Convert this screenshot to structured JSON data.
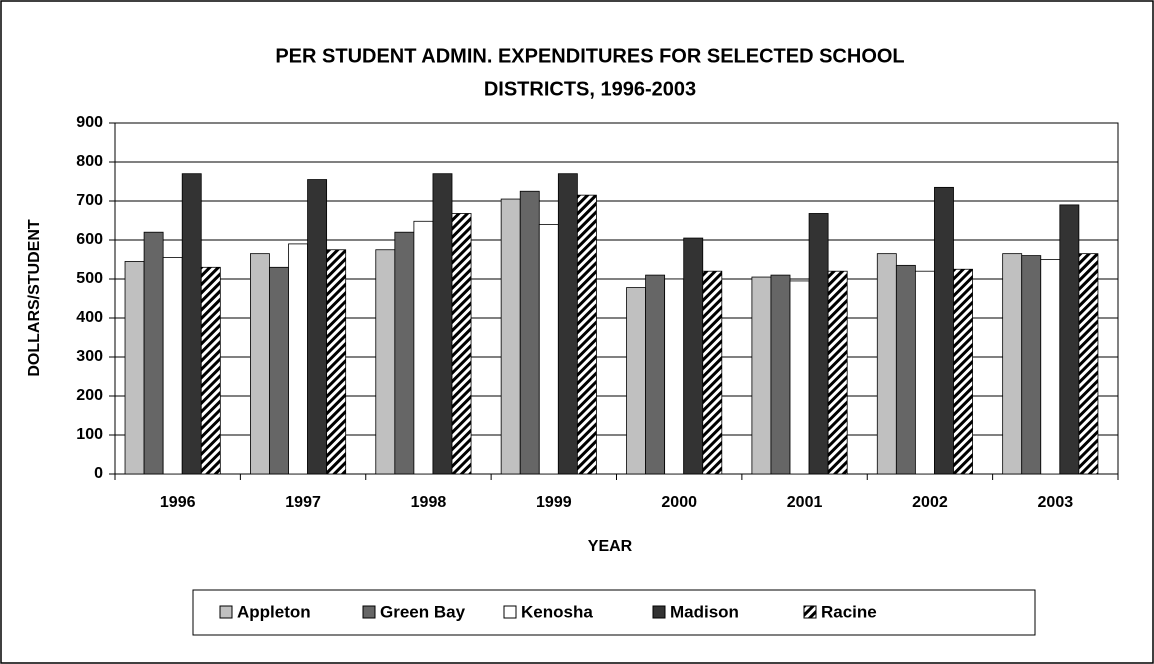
{
  "chart_data": {
    "type": "bar",
    "title": [
      "PER STUDENT ADMIN. EXPENDITURES FOR SELECTED SCHOOL",
      "DISTRICTS,   1996-2003"
    ],
    "x_label": "YEAR",
    "y_label": "DOLLARS/STUDENT",
    "categories": [
      "1996",
      "1997",
      "1998",
      "1999",
      "2000",
      "2001",
      "2002",
      "2003"
    ],
    "series": [
      {
        "name": "Appleton",
        "color": "#c0c0c0",
        "values": [
          545,
          565,
          575,
          705,
          478,
          505,
          565,
          565
        ]
      },
      {
        "name": "Green Bay",
        "color": "#666666",
        "values": [
          620,
          530,
          620,
          725,
          510,
          510,
          535,
          560
        ]
      },
      {
        "name": "Kenosha",
        "color": "#ffffff",
        "values": [
          555,
          590,
          648,
          640,
          500,
          495,
          520,
          550
        ]
      },
      {
        "name": "Madison",
        "color": "#333333",
        "values": [
          770,
          755,
          770,
          770,
          605,
          668,
          735,
          690
        ]
      },
      {
        "name": "Racine",
        "color": "#ffffff",
        "pattern": "hatch",
        "values": [
          530,
          575,
          668,
          715,
          520,
          520,
          525,
          565
        ]
      }
    ],
    "ylim": [
      0,
      900
    ],
    "yticks": [
      0,
      100,
      200,
      300,
      400,
      500,
      600,
      700,
      800,
      900
    ],
    "grid": true,
    "legend": "bottom"
  }
}
